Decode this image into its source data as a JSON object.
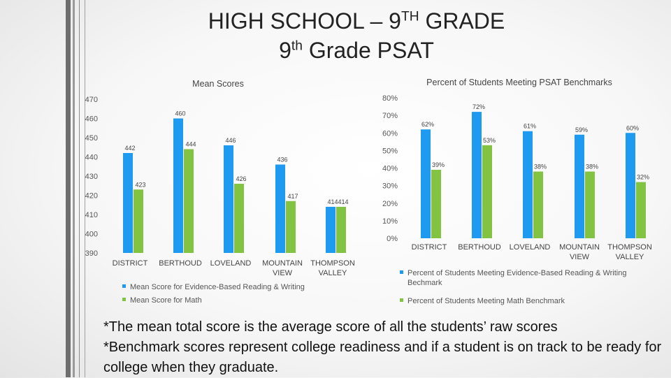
{
  "slide": {
    "title_line1_pre": "HIGH SCHOOL – 9",
    "title_line1_sup": "TH",
    "title_line1_post": " GRADE",
    "title_line2_pre": "9",
    "title_line2_sup": "th",
    "title_line2_post": " Grade PSAT",
    "footnote1": "*The mean total score is the average score of all the students’ raw scores",
    "footnote2": "*Benchmark scores represent college readiness and if a student is on track to be ready for college when they graduate."
  },
  "colors": {
    "blue": "#1e9af0",
    "green": "#82c341"
  },
  "chart_data": [
    {
      "type": "bar",
      "title": "Mean Scores",
      "categories": [
        "DISTRICT",
        "BERTHOUD",
        "LOVELAND",
        "MOUNTAIN VIEW",
        "THOMPSON VALLEY"
      ],
      "ylim": [
        390,
        470
      ],
      "yticks": [
        "390",
        "400",
        "410",
        "420",
        "430",
        "440",
        "450",
        "460",
        "470"
      ],
      "series": [
        {
          "name": "Mean Score for Evidence-Based Reading & Writing",
          "values": [
            442,
            460,
            446,
            436,
            414
          ],
          "labels": [
            "442",
            "460",
            "446",
            "436",
            "414"
          ]
        },
        {
          "name": "Mean Score for Math",
          "values": [
            423,
            444,
            426,
            417,
            414
          ],
          "labels": [
            "423",
            "444",
            "426",
            "417",
            "414"
          ]
        }
      ],
      "legend_position": "bottom"
    },
    {
      "type": "bar",
      "title": "Percent of Students Meeting PSAT Benchmarks",
      "categories": [
        "DISTRICT",
        "BERTHOUD",
        "LOVELAND",
        "MOUNTAIN VIEW",
        "THOMPSON VALLEY"
      ],
      "ylim": [
        0,
        80
      ],
      "yticks": [
        "0%",
        "10%",
        "20%",
        "30%",
        "40%",
        "50%",
        "60%",
        "70%",
        "80%"
      ],
      "series": [
        {
          "name": "Percent of Students Meeting Evidence-Based Reading & Writing Bechmark",
          "values": [
            62,
            72,
            61,
            59,
            60
          ],
          "labels": [
            "62%",
            "72%",
            "61%",
            "59%",
            "60%"
          ]
        },
        {
          "name": "Percent of Students Meeting Math Benchmark",
          "values": [
            39,
            53,
            38,
            38,
            32
          ],
          "labels": [
            "39%",
            "53%",
            "38%",
            "38%",
            "32%"
          ]
        }
      ],
      "legend_position": "bottom"
    }
  ]
}
